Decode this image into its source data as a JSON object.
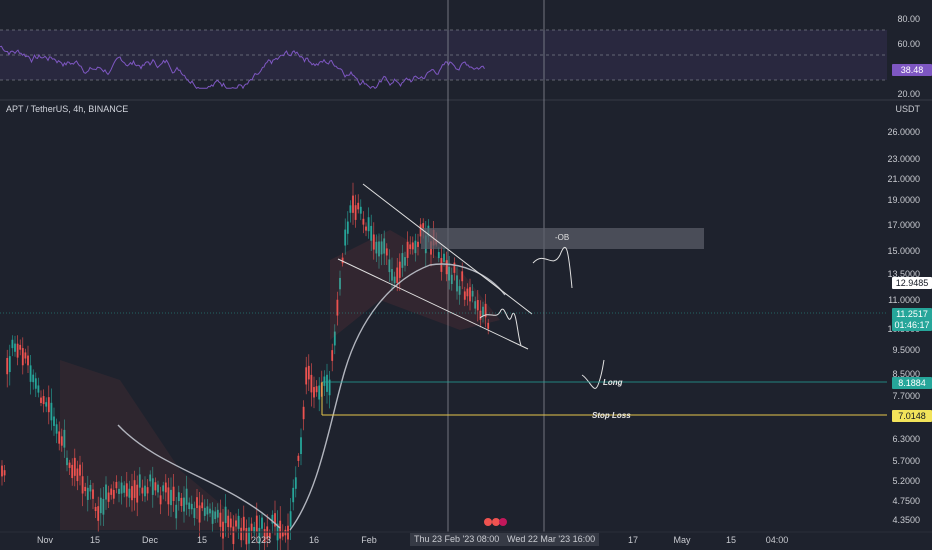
{
  "symbol": {
    "title": "APT / TetherUS, 4h, BINANCE"
  },
  "rsi_panel": {
    "levels": [
      "80.00",
      "60.00",
      "20.00"
    ],
    "current": "38.48",
    "current_color": "#7e57c2"
  },
  "price_axis": {
    "unit": "USDT",
    "levels": [
      "26.0000",
      "23.0000",
      "21.0000",
      "19.0000",
      "17.0000",
      "15.0000",
      "13.5000",
      "11.0000",
      "10.5000",
      "9.5000",
      "8.5000",
      "7.7000",
      "6.3000",
      "5.7000",
      "5.2000",
      "4.7500",
      "4.3500"
    ],
    "tags": {
      "level_12": "12.9485",
      "last_price": "11.2517",
      "countdown": "01:46:17",
      "long_level": "8.1884",
      "stop_loss_level": "7.0148"
    }
  },
  "annotations": {
    "ob": "-OB",
    "long": "Long",
    "stop_loss": "Stop Loss"
  },
  "time_axis": {
    "labels": [
      "Nov",
      "15",
      "Dec",
      "15",
      "2023",
      "16",
      "Feb",
      "17",
      "May",
      "15",
      "04:00"
    ],
    "highlight_start": "Thu 23 Feb '23   08:00",
    "highlight_end": "Wed 22 Mar '23   16:00"
  },
  "colors": {
    "background": "#1e222d",
    "up": "#26a69a",
    "down": "#ef5350",
    "rsi_line": "#7e57c2",
    "long_line": "#26a69a",
    "stop_loss_line": "#e6c54a",
    "ob_box": "#5d606b"
  }
}
